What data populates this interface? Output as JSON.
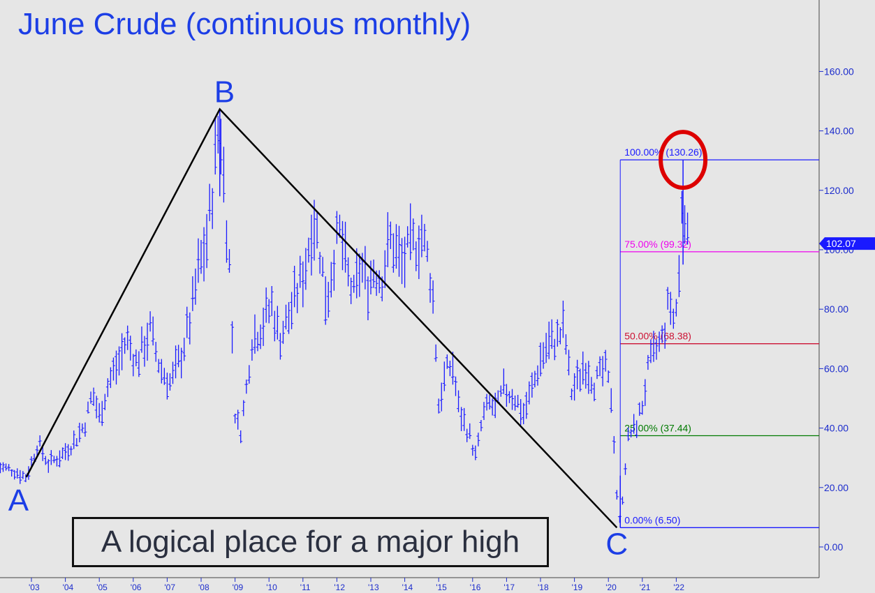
{
  "chart_data": {
    "type": "line",
    "title": "June Crude (continuous monthly)",
    "annotation": "A logical place for a major high",
    "ylim": [
      -10,
      180
    ],
    "yticks": [
      "0.00",
      "20.00",
      "40.00",
      "60.00",
      "80.00",
      "100.00",
      "120.00",
      "140.00",
      "160.00"
    ],
    "xtick_labels": [
      "'03",
      "'04",
      "'05",
      "'06",
      "'07",
      "'08",
      "'09",
      "'10",
      "'11",
      "'12",
      "'13",
      "'14",
      "'15",
      "'16",
      "'17",
      "'18",
      "'19",
      "'20",
      "'21",
      "'22"
    ],
    "last_price": "102.07",
    "colors": {
      "price": "#1a1aff",
      "wave": "#000000",
      "circle": "#dd0000",
      "fib100": "#1a1aff",
      "fib75": "#ee00ee",
      "fib50": "#cc1133",
      "fib0to37": "#007a00",
      "fib0": "#1a1aff"
    },
    "waves": [
      {
        "label": "A",
        "x": 2002.85,
        "y": 23.5
      },
      {
        "label": "B",
        "x": 2008.55,
        "y": 147.3
      },
      {
        "label": "C",
        "x": 2020.25,
        "y": 6.5
      }
    ],
    "fib_levels": [
      {
        "label": "100.00% (130.26)",
        "value": 130.26,
        "color": "#1a1aff"
      },
      {
        "label": "75.00% (99.32)",
        "value": 99.32,
        "color": "#ee00ee"
      },
      {
        "label": "50.00% (68.38)",
        "value": 68.38,
        "color": "#cc1133"
      },
      {
        "label": "25.00% (37.44)",
        "value": 37.44,
        "color": "#007a00"
      },
      {
        "label": "0.00% (6.50)",
        "value": 6.5,
        "color": "#1a1aff"
      }
    ],
    "price_path": [
      [
        2002.0,
        27
      ],
      [
        2002.4,
        26
      ],
      [
        2002.85,
        23.5
      ],
      [
        2003.2,
        35
      ],
      [
        2003.5,
        28
      ],
      [
        2003.9,
        31
      ],
      [
        2004.3,
        36
      ],
      [
        2004.6,
        42
      ],
      [
        2004.8,
        52
      ],
      [
        2005.0,
        44
      ],
      [
        2005.3,
        56
      ],
      [
        2005.6,
        63
      ],
      [
        2005.8,
        70
      ],
      [
        2006.1,
        62
      ],
      [
        2006.5,
        73
      ],
      [
        2006.8,
        60
      ],
      [
        2007.1,
        55
      ],
      [
        2007.4,
        64
      ],
      [
        2007.7,
        77
      ],
      [
        2007.9,
        92
      ],
      [
        2008.2,
        105
      ],
      [
        2008.4,
        128
      ],
      [
        2008.55,
        145
      ],
      [
        2008.7,
        118
      ],
      [
        2008.85,
        92
      ],
      [
        2009.0,
        45
      ],
      [
        2009.15,
        38
      ],
      [
        2009.3,
        50
      ],
      [
        2009.5,
        70
      ],
      [
        2009.8,
        75
      ],
      [
        2010.1,
        82
      ],
      [
        2010.3,
        70
      ],
      [
        2010.6,
        78
      ],
      [
        2010.9,
        88
      ],
      [
        2011.1,
        96
      ],
      [
        2011.3,
        112
      ],
      [
        2011.5,
        100
      ],
      [
        2011.7,
        82
      ],
      [
        2011.9,
        98
      ],
      [
        2012.1,
        106
      ],
      [
        2012.3,
        92
      ],
      [
        2012.5,
        84
      ],
      [
        2012.7,
        95
      ],
      [
        2012.9,
        88
      ],
      [
        2013.1,
        94
      ],
      [
        2013.3,
        90
      ],
      [
        2013.6,
        104
      ],
      [
        2013.9,
        95
      ],
      [
        2014.2,
        101
      ],
      [
        2014.5,
        105
      ],
      [
        2014.7,
        96
      ],
      [
        2014.85,
        82
      ],
      [
        2015.0,
        48
      ],
      [
        2015.2,
        58
      ],
      [
        2015.4,
        62
      ],
      [
        2015.6,
        46
      ],
      [
        2015.9,
        38
      ],
      [
        2016.1,
        30
      ],
      [
        2016.3,
        44
      ],
      [
        2016.5,
        48
      ],
      [
        2016.7,
        46
      ],
      [
        2016.9,
        53
      ],
      [
        2017.2,
        51
      ],
      [
        2017.5,
        45
      ],
      [
        2017.8,
        55
      ],
      [
        2018.0,
        63
      ],
      [
        2018.2,
        68
      ],
      [
        2018.5,
        70
      ],
      [
        2018.7,
        74
      ],
      [
        2018.9,
        52
      ],
      [
        2019.1,
        56
      ],
      [
        2019.3,
        62
      ],
      [
        2019.6,
        55
      ],
      [
        2019.9,
        60
      ],
      [
        2020.1,
        50
      ],
      [
        2020.25,
        18
      ],
      [
        2020.35,
        6.5
      ],
      [
        2020.45,
        22
      ],
      [
        2020.6,
        38
      ],
      [
        2020.8,
        40
      ],
      [
        2021.0,
        48
      ],
      [
        2021.2,
        61
      ],
      [
        2021.4,
        66
      ],
      [
        2021.6,
        70
      ],
      [
        2021.8,
        83
      ],
      [
        2021.95,
        75
      ],
      [
        2022.1,
        92
      ],
      [
        2022.2,
        130.26
      ],
      [
        2022.3,
        100
      ],
      [
        2022.35,
        102.07
      ]
    ]
  }
}
